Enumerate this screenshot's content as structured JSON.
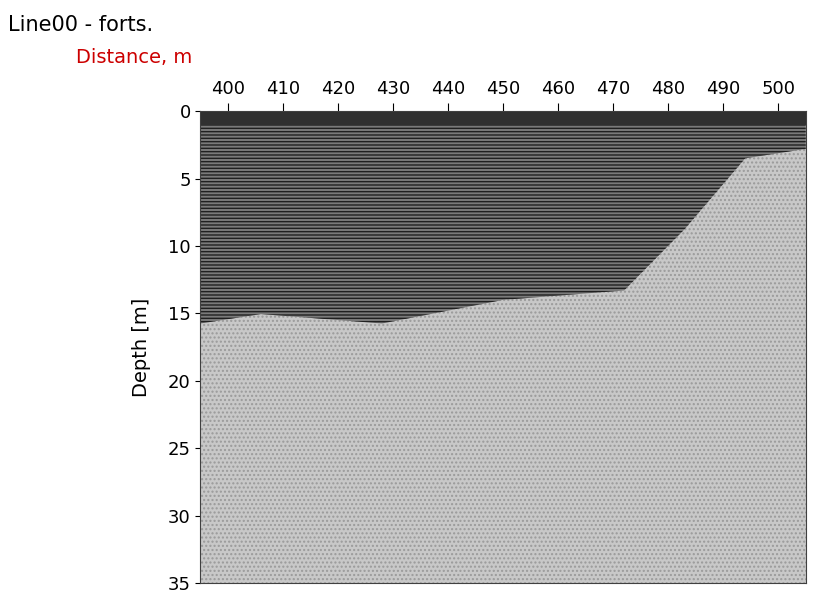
{
  "chart_data": {
    "type": "image",
    "title": "Line00 - forts.",
    "xlabel": "Distance, m",
    "ylabel": "Depth [m]",
    "xlim": [
      395,
      505
    ],
    "xticks": [
      400,
      410,
      420,
      430,
      440,
      450,
      460,
      470,
      480,
      490,
      500
    ],
    "ylim": [
      35,
      0
    ],
    "yticks": [
      0,
      5,
      10,
      15,
      20,
      25,
      30,
      35
    ]
  }
}
